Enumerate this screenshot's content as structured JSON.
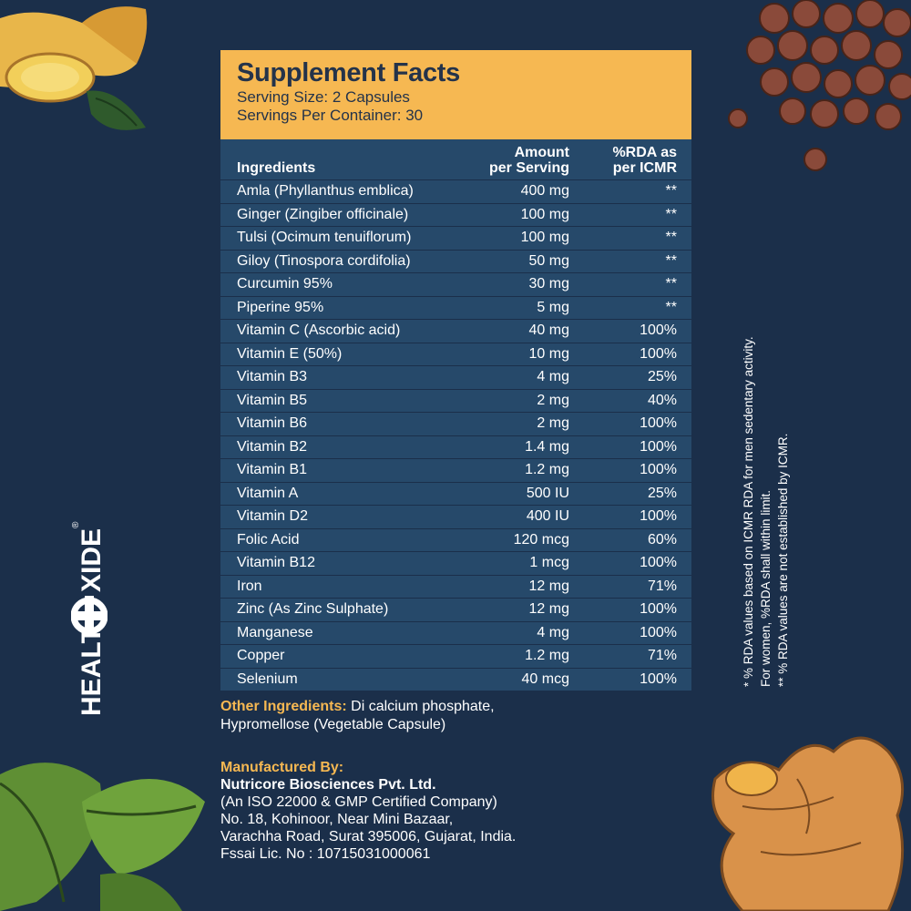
{
  "header": {
    "title": "Supplement Facts",
    "serving_size": "Serving Size: 2 Capsules",
    "servings_per_container": "Servings Per Container: 30"
  },
  "columns": {
    "ingredients": "Ingredients",
    "amount_line1": "Amount",
    "amount_line2": "per Serving",
    "rda_line1": "%RDA as",
    "rda_line2": "per ICMR"
  },
  "rows": [
    {
      "name": "Amla (Phyllanthus emblica)",
      "amount": "400 mg",
      "rda": "**"
    },
    {
      "name": "Ginger (Zingiber officinale)",
      "amount": "100 mg",
      "rda": "**"
    },
    {
      "name": "Tulsi (Ocimum tenuiflorum)",
      "amount": "100 mg",
      "rda": "**"
    },
    {
      "name": "Giloy (Tinospora cordifolia)",
      "amount": "50 mg",
      "rda": "**"
    },
    {
      "name": "Curcumin 95%",
      "amount": "30 mg",
      "rda": "**"
    },
    {
      "name": "Piperine 95%",
      "amount": "5 mg",
      "rda": "**"
    },
    {
      "name": "Vitamin C (Ascorbic acid)",
      "amount": "40 mg",
      "rda": "100%"
    },
    {
      "name": "Vitamin E (50%)",
      "amount": "10 mg",
      "rda": "100%"
    },
    {
      "name": "Vitamin B3",
      "amount": "4 mg",
      "rda": "25%"
    },
    {
      "name": "Vitamin B5",
      "amount": "2 mg",
      "rda": "40%"
    },
    {
      "name": "Vitamin B6",
      "amount": "2 mg",
      "rda": "100%"
    },
    {
      "name": "Vitamin B2",
      "amount": "1.4 mg",
      "rda": "100%"
    },
    {
      "name": "Vitamin B1",
      "amount": "1.2 mg",
      "rda": "100%"
    },
    {
      "name": "Vitamin A",
      "amount": "500 IU",
      "rda": "25%"
    },
    {
      "name": "Vitamin D2",
      "amount": "400 IU",
      "rda": "100%"
    },
    {
      "name": "Folic Acid",
      "amount": "120 mcg",
      "rda": "60%"
    },
    {
      "name": "Vitamin B12",
      "amount": "1 mcg",
      "rda": "100%"
    },
    {
      "name": "Iron",
      "amount": "12 mg",
      "rda": "71%"
    },
    {
      "name": "Zinc (As Zinc Sulphate)",
      "amount": "12 mg",
      "rda": "100%"
    },
    {
      "name": "Manganese",
      "amount": "4 mg",
      "rda": "100%"
    },
    {
      "name": "Copper",
      "amount": "1.2 mg",
      "rda": "71%"
    },
    {
      "name": "Selenium",
      "amount": "40 mcg",
      "rda": "100%"
    }
  ],
  "other_ingredients": {
    "label": "Other Ingredients:",
    "text_line1": " Di calcium phosphate,",
    "text_line2": "Hypromellose (Vegetable Capsule)"
  },
  "manufacturer": {
    "label": "Manufactured By:",
    "company": "Nutricore Biosciences Pvt. Ltd.",
    "line1": "(An ISO 22000 & GMP Certified Company)",
    "line2": "No. 18, Kohinoor, Near Mini Bazaar,",
    "line3": "Varachha Road, Surat 395006, Gujarat, India.",
    "license": "Fssai Lic. No : 10715031000061"
  },
  "notes": {
    "note1": "* % RDA values based on ICMR RDA for men sedentary activity.",
    "note1b": "For women, %RDA shall within limit.",
    "note2": "** % RDA values are not established by ICMR."
  },
  "logo": {
    "text_left": "HEALT",
    "text_right": "XIDE",
    "reg": "®"
  },
  "colors": {
    "background": "#1b2f4a",
    "panel": "#26496a",
    "accent": "#f6b852"
  }
}
